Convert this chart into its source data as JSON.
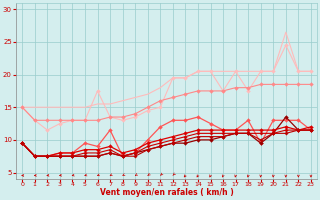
{
  "x": [
    0,
    1,
    2,
    3,
    4,
    5,
    6,
    7,
    8,
    9,
    10,
    11,
    12,
    13,
    14,
    15,
    16,
    17,
    18,
    19,
    20,
    21,
    22,
    23
  ],
  "series": [
    {
      "name": "line1_lightest_upper",
      "y": [
        15.0,
        15.0,
        15.0,
        15.0,
        15.0,
        15.0,
        15.5,
        15.5,
        16.0,
        16.5,
        17.0,
        18.0,
        19.5,
        19.5,
        20.5,
        20.5,
        20.5,
        20.5,
        20.5,
        20.5,
        20.5,
        26.5,
        20.5,
        20.5
      ],
      "color": "#ffbbbb",
      "marker": null,
      "linewidth": 0.8,
      "markersize": 0,
      "zorder": 2
    },
    {
      "name": "line2_lightest_peaked",
      "y": [
        15.0,
        13.0,
        11.5,
        12.5,
        13.0,
        13.0,
        17.5,
        13.5,
        13.0,
        13.5,
        14.5,
        15.0,
        19.5,
        19.5,
        20.5,
        20.5,
        17.5,
        20.5,
        17.5,
        20.5,
        20.5,
        24.5,
        20.5,
        20.5
      ],
      "color": "#ffbbbb",
      "marker": "D",
      "linewidth": 0.8,
      "markersize": 2.0,
      "zorder": 2
    },
    {
      "name": "line3_pink_rising",
      "y": [
        15.0,
        13.0,
        13.0,
        13.0,
        13.0,
        13.0,
        13.0,
        13.5,
        13.5,
        14.0,
        15.0,
        16.0,
        16.5,
        17.0,
        17.5,
        17.5,
        17.5,
        18.0,
        18.0,
        18.5,
        18.5,
        18.5,
        18.5,
        18.5
      ],
      "color": "#ff8888",
      "marker": "D",
      "linewidth": 0.8,
      "markersize": 2.0,
      "zorder": 3
    },
    {
      "name": "line4_medium_pink",
      "y": [
        9.5,
        7.5,
        7.5,
        8.0,
        8.0,
        9.5,
        9.0,
        11.5,
        7.5,
        8.0,
        10.0,
        12.0,
        13.0,
        13.0,
        13.5,
        12.5,
        11.5,
        11.5,
        13.0,
        9.5,
        13.0,
        13.0,
        13.0,
        11.5
      ],
      "color": "#ff5555",
      "marker": "D",
      "linewidth": 0.9,
      "markersize": 2.0,
      "zorder": 4
    },
    {
      "name": "line5_red_upper_cluster",
      "y": [
        9.5,
        7.5,
        7.5,
        8.0,
        8.0,
        8.5,
        8.5,
        9.0,
        8.0,
        8.5,
        9.5,
        10.0,
        10.5,
        11.0,
        11.5,
        11.5,
        11.5,
        11.5,
        11.5,
        11.5,
        11.5,
        12.0,
        11.5,
        12.0
      ],
      "color": "#dd0000",
      "marker": "D",
      "linewidth": 0.9,
      "markersize": 2.0,
      "zorder": 5
    },
    {
      "name": "line6_red_cluster2",
      "y": [
        9.5,
        7.5,
        7.5,
        7.5,
        7.5,
        8.0,
        8.0,
        8.5,
        7.5,
        8.0,
        9.0,
        9.5,
        10.0,
        10.5,
        11.0,
        11.0,
        11.0,
        11.0,
        11.0,
        11.0,
        11.0,
        11.5,
        11.5,
        11.5
      ],
      "color": "#cc0000",
      "marker": "D",
      "linewidth": 0.8,
      "markersize": 1.8,
      "zorder": 5
    },
    {
      "name": "line7_red_cluster3",
      "y": [
        9.5,
        7.5,
        7.5,
        7.5,
        7.5,
        7.5,
        7.5,
        8.0,
        7.5,
        7.5,
        8.5,
        9.0,
        9.5,
        10.0,
        10.5,
        10.5,
        10.5,
        11.0,
        11.0,
        10.0,
        11.0,
        11.0,
        11.5,
        11.5
      ],
      "color": "#bb0000",
      "marker": "D",
      "linewidth": 0.8,
      "markersize": 1.8,
      "zorder": 5
    },
    {
      "name": "line8_darkred_irregular",
      "y": [
        9.5,
        7.5,
        7.5,
        7.5,
        7.5,
        7.5,
        7.5,
        8.0,
        7.5,
        8.0,
        8.5,
        9.0,
        9.5,
        9.5,
        10.0,
        10.0,
        10.5,
        11.0,
        11.0,
        9.5,
        11.0,
        13.5,
        11.5,
        11.5
      ],
      "color": "#990000",
      "marker": "D",
      "linewidth": 0.9,
      "markersize": 2.0,
      "zorder": 4
    }
  ],
  "xlabel": "Vent moyen/en rafales ( km/h )",
  "xlim": [
    -0.5,
    23.5
  ],
  "ylim": [
    4,
    31
  ],
  "yticks": [
    5,
    10,
    15,
    20,
    25,
    30
  ],
  "xticks": [
    0,
    1,
    2,
    3,
    4,
    5,
    6,
    7,
    8,
    9,
    10,
    11,
    12,
    13,
    14,
    15,
    16,
    17,
    18,
    19,
    20,
    21,
    22,
    23
  ],
  "background_color": "#d4eeee",
  "grid_color": "#99cccc",
  "tick_color": "#cc0000",
  "label_color": "#cc0000",
  "arrow_angles": [
    270,
    265,
    260,
    255,
    250,
    245,
    240,
    235,
    230,
    225,
    220,
    215,
    210,
    205,
    200,
    195,
    192,
    190,
    188,
    186,
    184,
    182,
    181,
    180
  ]
}
